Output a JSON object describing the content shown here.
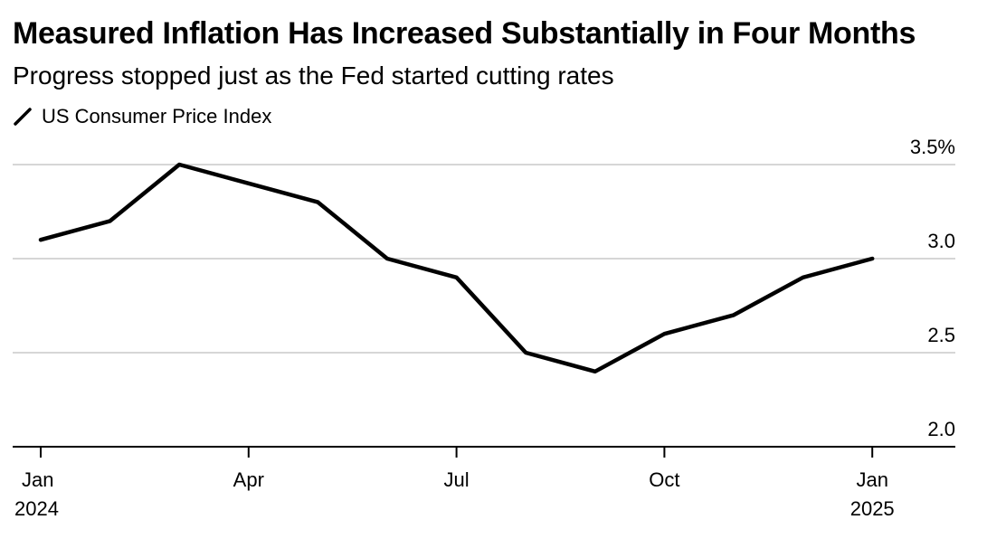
{
  "chart_data": {
    "type": "line",
    "title": "Measured Inflation Has Increased Substantially in Four Months",
    "subtitle": "Progress stopped just as the Fed started cutting rates",
    "xlabel": "",
    "ylabel": "",
    "x": [
      "2024-01",
      "2024-02",
      "2024-03",
      "2024-04",
      "2024-05",
      "2024-06",
      "2024-07",
      "2024-08",
      "2024-09",
      "2024-10",
      "2024-11",
      "2024-12",
      "2025-01"
    ],
    "series": [
      {
        "name": "US Consumer Price Index",
        "color": "#000000",
        "values": [
          3.1,
          3.2,
          3.5,
          3.4,
          3.3,
          3.0,
          2.9,
          2.5,
          2.4,
          2.6,
          2.7,
          2.9,
          3.0
        ]
      }
    ],
    "ylim": [
      2.0,
      3.5
    ],
    "yticks": [
      2.0,
      2.5,
      3.0,
      3.5
    ],
    "ytick_labels": [
      "2.0",
      "2.5",
      "3.0",
      "3.5%"
    ],
    "xticks": [
      {
        "x": "2024-01",
        "line1": "Jan",
        "line2": "2024"
      },
      {
        "x": "2024-04",
        "line1": "Apr",
        "line2": ""
      },
      {
        "x": "2024-07",
        "line1": "Jul",
        "line2": ""
      },
      {
        "x": "2024-10",
        "line1": "Oct",
        "line2": ""
      },
      {
        "x": "2025-01",
        "line1": "Jan",
        "line2": "2025"
      }
    ],
    "grid": true,
    "legend_position": "top-left"
  }
}
